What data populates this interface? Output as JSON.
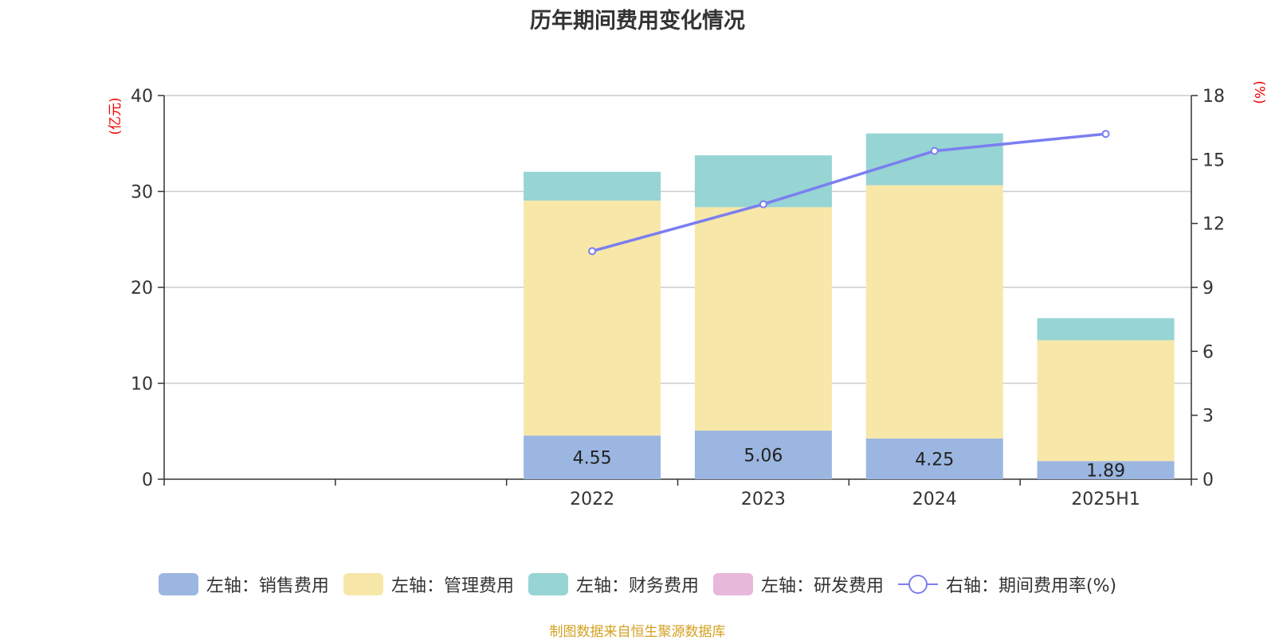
{
  "chart_data": {
    "type": "bar",
    "title": "历年期间费用变化情况",
    "categories": [
      "",
      "",
      "2022",
      "2023",
      "2024",
      "2025H1"
    ],
    "left_axis": {
      "unit": "(亿元)",
      "min": 0,
      "max": 40,
      "ticks": [
        "0",
        "10",
        "20",
        "30",
        "40"
      ]
    },
    "right_axis": {
      "unit": "(%)",
      "min": 0,
      "max": 18,
      "ticks": [
        "0",
        "3",
        "6",
        "9",
        "12",
        "15",
        "18"
      ]
    },
    "grid": true,
    "legend_position": "bottom",
    "series": [
      {
        "name": "左轴：销售费用",
        "kind": "bar",
        "axis": "left",
        "color": "#9bb6e0",
        "values": [
          null,
          null,
          4.55,
          5.06,
          4.25,
          1.89
        ],
        "labels": [
          "",
          "",
          "4.55",
          "5.06",
          "4.25",
          "1.89"
        ]
      },
      {
        "name": "左轴：管理费用",
        "kind": "bar",
        "axis": "left",
        "color": "#f7e7a8",
        "values": [
          null,
          null,
          24.5,
          23.3,
          26.4,
          12.6
        ]
      },
      {
        "name": "左轴：财务费用",
        "kind": "bar",
        "axis": "left",
        "color": "#97d4d4",
        "values": [
          null,
          null,
          3.0,
          5.4,
          5.4,
          2.3
        ]
      },
      {
        "name": "左轴：研发费用",
        "kind": "bar",
        "axis": "left",
        "color": "#e8b8da",
        "values": [
          null,
          null,
          null,
          null,
          null,
          null
        ]
      },
      {
        "name": "右轴：期间费用率(%)",
        "kind": "line",
        "axis": "right",
        "color": "#7b7ef0",
        "values": [
          null,
          null,
          10.7,
          12.9,
          15.4,
          16.2
        ]
      }
    ]
  },
  "source_note": "制图数据来自恒生聚源数据库"
}
